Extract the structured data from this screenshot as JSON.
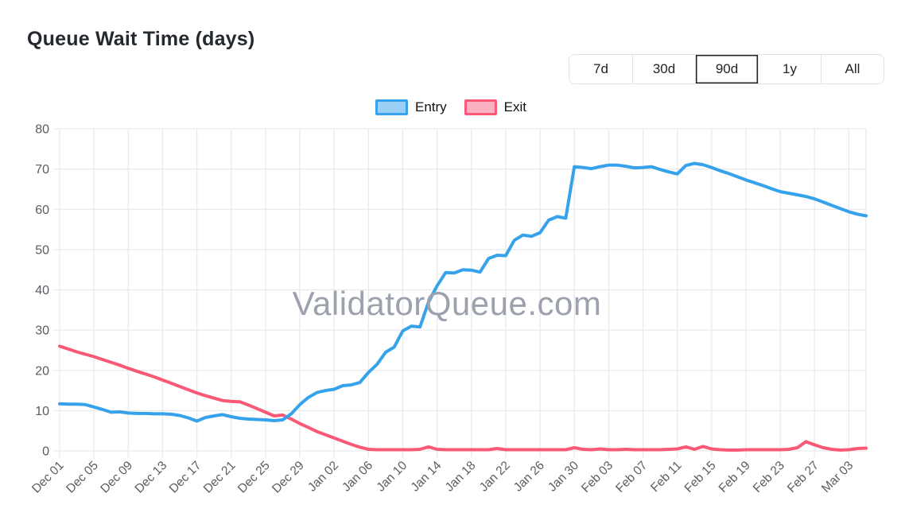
{
  "title": "Queue Wait Time (days)",
  "watermark": "ValidatorQueue.com",
  "active_range": "90d",
  "range_buttons": [
    {
      "label": "7d"
    },
    {
      "label": "30d"
    },
    {
      "label": "90d"
    },
    {
      "label": "1y"
    },
    {
      "label": "All"
    }
  ],
  "legend": [
    {
      "label": "Entry",
      "color": "#36a2eb",
      "fill": "#9ad0f5"
    },
    {
      "label": "Exit",
      "color": "#f95977",
      "fill": "#fcb1c3"
    }
  ],
  "colors": {
    "entry_line": "#36a2eb",
    "exit_line": "#f95977",
    "grid": "#e9eaec",
    "tick_text": "#595c60",
    "watermark": "#9ba1ad",
    "title_text": "#24292f",
    "button_border": "#dee2e6",
    "active_button_border": "#212529"
  },
  "chart_data": {
    "type": "line",
    "title": "Queue Wait Time (days)",
    "xlabel": "",
    "ylabel": "",
    "ylim": [
      0,
      80
    ],
    "y_ticks": [
      0,
      10,
      20,
      30,
      40,
      50,
      60,
      70,
      80
    ],
    "grid": true,
    "legend_position": "top",
    "x_tick_every": 4,
    "x_tick_labels": [
      "Dec 01",
      "Dec 05",
      "Dec 09",
      "Dec 13",
      "Dec 17",
      "Dec 21",
      "Dec 25",
      "Dec 29",
      "Jan 02",
      "Jan 06",
      "Jan 10",
      "Jan 14",
      "Jan 18",
      "Jan 22",
      "Jan 26",
      "Jan 30",
      "Feb 03",
      "Feb 07",
      "Feb 11",
      "Feb 15",
      "Feb 19",
      "Feb 23",
      "Feb 27",
      "Mar 03"
    ],
    "categories": [
      "Dec 01",
      "Dec 02",
      "Dec 03",
      "Dec 04",
      "Dec 05",
      "Dec 06",
      "Dec 07",
      "Dec 08",
      "Dec 09",
      "Dec 10",
      "Dec 11",
      "Dec 12",
      "Dec 13",
      "Dec 14",
      "Dec 15",
      "Dec 16",
      "Dec 17",
      "Dec 18",
      "Dec 19",
      "Dec 20",
      "Dec 21",
      "Dec 22",
      "Dec 23",
      "Dec 24",
      "Dec 25",
      "Dec 26",
      "Dec 27",
      "Dec 28",
      "Dec 29",
      "Dec 30",
      "Dec 31",
      "Jan 01",
      "Jan 02",
      "Jan 03",
      "Jan 04",
      "Jan 05",
      "Jan 06",
      "Jan 07",
      "Jan 08",
      "Jan 09",
      "Jan 10",
      "Jan 11",
      "Jan 12",
      "Jan 13",
      "Jan 14",
      "Jan 15",
      "Jan 16",
      "Jan 17",
      "Jan 18",
      "Jan 19",
      "Jan 20",
      "Jan 21",
      "Jan 22",
      "Jan 23",
      "Jan 24",
      "Jan 25",
      "Jan 26",
      "Jan 27",
      "Jan 28",
      "Jan 29",
      "Jan 30",
      "Jan 31",
      "Feb 01",
      "Feb 02",
      "Feb 03",
      "Feb 04",
      "Feb 05",
      "Feb 06",
      "Feb 07",
      "Feb 08",
      "Feb 09",
      "Feb 10",
      "Feb 11",
      "Feb 12",
      "Feb 13",
      "Feb 14",
      "Feb 15",
      "Feb 16",
      "Feb 17",
      "Feb 18",
      "Feb 19",
      "Feb 20",
      "Feb 21",
      "Feb 22",
      "Feb 23",
      "Feb 24",
      "Feb 25",
      "Feb 26",
      "Feb 27",
      "Feb 28",
      "Mar 01",
      "Mar 02",
      "Mar 03",
      "Mar 04",
      "Mar 05"
    ],
    "series": [
      {
        "name": "Entry",
        "color": "#36a2eb",
        "values": [
          11.7,
          11.6,
          11.6,
          11.5,
          10.9,
          10.3,
          9.6,
          9.7,
          9.4,
          9.3,
          9.3,
          9.2,
          9.2,
          9.1,
          8.8,
          8.2,
          7.4,
          8.3,
          8.7,
          9.0,
          8.5,
          8.1,
          7.9,
          7.8,
          7.7,
          7.5,
          7.7,
          9.2,
          11.5,
          13.3,
          14.5,
          15.0,
          15.3,
          16.2,
          16.4,
          17.0,
          19.5,
          21.5,
          24.5,
          25.8,
          29.8,
          31.0,
          30.8,
          37.0,
          41.0,
          44.3,
          44.2,
          45.0,
          44.9,
          44.4,
          47.8,
          48.6,
          48.5,
          52.3,
          53.6,
          53.3,
          54.2,
          57.3,
          58.2,
          57.8,
          70.6,
          70.4,
          70.1,
          70.6,
          71.0,
          71.0,
          70.7,
          70.3,
          70.4,
          70.6,
          69.9,
          69.3,
          68.8,
          70.9,
          71.4,
          71.1,
          70.4,
          69.6,
          68.9,
          68.1,
          67.3,
          66.6,
          65.9,
          65.1,
          64.4,
          64.0,
          63.6,
          63.2,
          62.6,
          61.8,
          61.0,
          60.2,
          59.4,
          58.8,
          58.4
        ]
      },
      {
        "name": "Exit",
        "color": "#f95977",
        "values": [
          26.0,
          25.3,
          24.6,
          24.0,
          23.4,
          22.7,
          22.0,
          21.3,
          20.5,
          19.8,
          19.1,
          18.4,
          17.6,
          16.8,
          16.0,
          15.2,
          14.4,
          13.7,
          13.1,
          12.5,
          12.3,
          12.2,
          11.4,
          10.5,
          9.6,
          8.7,
          8.9,
          7.9,
          6.8,
          5.8,
          4.8,
          4.0,
          3.2,
          2.4,
          1.6,
          0.9,
          0.4,
          0.3,
          0.3,
          0.3,
          0.3,
          0.3,
          0.4,
          1.0,
          0.4,
          0.3,
          0.3,
          0.3,
          0.3,
          0.3,
          0.3,
          0.6,
          0.3,
          0.3,
          0.3,
          0.3,
          0.3,
          0.3,
          0.3,
          0.3,
          0.8,
          0.4,
          0.3,
          0.5,
          0.3,
          0.3,
          0.4,
          0.3,
          0.3,
          0.3,
          0.3,
          0.4,
          0.5,
          1.0,
          0.4,
          1.1,
          0.5,
          0.3,
          0.2,
          0.2,
          0.3,
          0.3,
          0.3,
          0.3,
          0.3,
          0.4,
          0.8,
          2.3,
          1.5,
          0.8,
          0.4,
          0.2,
          0.3,
          0.6,
          0.7
        ]
      }
    ]
  }
}
